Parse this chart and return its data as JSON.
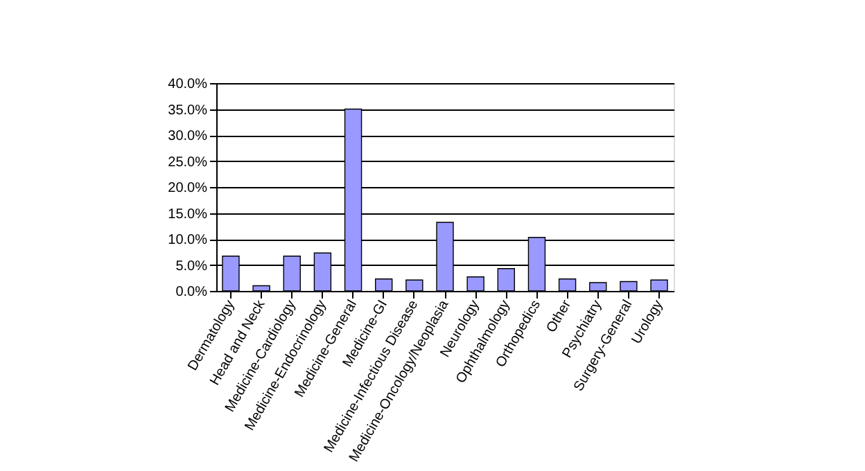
{
  "chart_data": {
    "type": "bar",
    "categories": [
      "Dermatology",
      "Head and Neck",
      "Medicine-Cardiology",
      "Medicine-Endocrinology",
      "Medicine-General",
      "Medicine-GI",
      "Medicine-Infectious Disease",
      "Medicine-Oncology/Neoplasia",
      "Neurology",
      "Ophthalmology",
      "Orthopedics",
      "Other",
      "Psychiatry",
      "Surgery-General",
      "Urology"
    ],
    "values": [
      6.7,
      1.0,
      6.7,
      7.3,
      35.0,
      2.3,
      2.1,
      13.2,
      2.7,
      4.3,
      10.3,
      2.3,
      1.6,
      1.8,
      2.1
    ],
    "color": "#9999ff",
    "ylim": [
      0,
      40
    ],
    "yticks": [
      {
        "value": 0,
        "label": "0.0%"
      },
      {
        "value": 5,
        "label": "5.0%"
      },
      {
        "value": 10,
        "label": "10.0%"
      },
      {
        "value": 15,
        "label": "15.0%"
      },
      {
        "value": 20,
        "label": "20.0%"
      },
      {
        "value": 25,
        "label": "25.0%"
      },
      {
        "value": 30,
        "label": "30.0%"
      },
      {
        "value": 35,
        "label": "35.0%"
      },
      {
        "value": 40,
        "label": "40.0%"
      }
    ],
    "grid": "y"
  }
}
